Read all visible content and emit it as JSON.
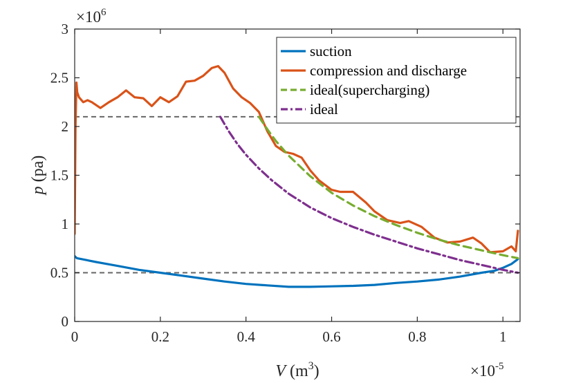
{
  "chart_data": {
    "type": "line",
    "xlabel": "V (m3)",
    "xlabel_main": "V",
    "xlabel_unit_open": " (m",
    "xlabel_unit_exp": "3",
    "xlabel_unit_close": ")",
    "ylabel": "p (pa)",
    "ylabel_main": "p",
    "ylabel_unit": " (pa)",
    "x_multiplier": "×10",
    "x_multiplier_exp": "-5",
    "y_multiplier": "×10",
    "y_multiplier_exp": "6",
    "xlim": [
      0,
      1.04
    ],
    "ylim": [
      0,
      3
    ],
    "x_ticks": [
      0,
      0.2,
      0.4,
      0.6,
      0.8,
      1
    ],
    "x_tick_labels": [
      "0",
      "0.2",
      "0.4",
      "0.6",
      "0.8",
      "1"
    ],
    "y_ticks": [
      0,
      0.5,
      1,
      1.5,
      2,
      2.5,
      3
    ],
    "y_tick_labels": [
      "0",
      "0.5",
      "1",
      "1.5",
      "2",
      "2.5",
      "3"
    ],
    "grid": false,
    "legend_position": "top-right",
    "reference_lines": [
      {
        "y": 2.1,
        "color": "#666666",
        "style": "dashed"
      },
      {
        "y": 0.5,
        "color": "#666666",
        "style": "dashed"
      }
    ],
    "series": [
      {
        "name": "suction",
        "color": "#0072BD",
        "style": "solid",
        "x": [
          0,
          0.005,
          0.05,
          0.1,
          0.15,
          0.2,
          0.25,
          0.3,
          0.35,
          0.4,
          0.45,
          0.5,
          0.55,
          0.6,
          0.65,
          0.7,
          0.75,
          0.8,
          0.85,
          0.9,
          0.95,
          0.98,
          1.0,
          1.02,
          1.035
        ],
        "y": [
          0.67,
          0.65,
          0.61,
          0.57,
          0.53,
          0.5,
          0.47,
          0.44,
          0.41,
          0.385,
          0.37,
          0.355,
          0.355,
          0.36,
          0.365,
          0.375,
          0.395,
          0.41,
          0.43,
          0.46,
          0.5,
          0.52,
          0.55,
          0.59,
          0.64
        ]
      },
      {
        "name": "compression and discharge",
        "color": "#D95319",
        "style": "solid",
        "x": [
          0,
          0.002,
          0.004,
          0.006,
          0.01,
          0.02,
          0.03,
          0.04,
          0.06,
          0.08,
          0.1,
          0.12,
          0.14,
          0.16,
          0.18,
          0.2,
          0.22,
          0.24,
          0.26,
          0.28,
          0.3,
          0.32,
          0.335,
          0.35,
          0.37,
          0.39,
          0.41,
          0.43,
          0.45,
          0.47,
          0.49,
          0.51,
          0.53,
          0.55,
          0.57,
          0.6,
          0.62,
          0.65,
          0.68,
          0.7,
          0.73,
          0.76,
          0.78,
          0.81,
          0.84,
          0.87,
          0.9,
          0.93,
          0.95,
          0.97,
          1.0,
          1.02,
          1.03,
          1.035
        ],
        "y": [
          0.9,
          2.0,
          2.45,
          2.35,
          2.3,
          2.25,
          2.27,
          2.25,
          2.19,
          2.25,
          2.3,
          2.37,
          2.3,
          2.29,
          2.21,
          2.3,
          2.25,
          2.31,
          2.46,
          2.47,
          2.52,
          2.6,
          2.62,
          2.55,
          2.39,
          2.3,
          2.24,
          2.15,
          1.95,
          1.8,
          1.74,
          1.72,
          1.68,
          1.55,
          1.45,
          1.35,
          1.33,
          1.33,
          1.22,
          1.13,
          1.04,
          1.01,
          1.03,
          0.97,
          0.86,
          0.81,
          0.82,
          0.86,
          0.8,
          0.71,
          0.72,
          0.77,
          0.72,
          0.93
        ]
      },
      {
        "name": "ideal(supercharging)",
        "color": "#77AC30",
        "style": "dashed",
        "x": [
          0.43,
          0.45,
          0.47,
          0.5,
          0.55,
          0.6,
          0.65,
          0.7,
          0.75,
          0.8,
          0.85,
          0.9,
          0.95,
          1.0,
          1.035
        ],
        "y": [
          2.1,
          1.97,
          1.85,
          1.7,
          1.49,
          1.32,
          1.19,
          1.08,
          0.99,
          0.91,
          0.84,
          0.78,
          0.73,
          0.68,
          0.65
        ]
      },
      {
        "name": "ideal",
        "color": "#7E2F8E",
        "style": "dashdot",
        "x": [
          0.34,
          0.36,
          0.38,
          0.4,
          0.43,
          0.46,
          0.5,
          0.55,
          0.6,
          0.65,
          0.7,
          0.75,
          0.8,
          0.85,
          0.9,
          0.95,
          1.0,
          1.035
        ],
        "y": [
          2.1,
          1.95,
          1.82,
          1.71,
          1.57,
          1.45,
          1.31,
          1.17,
          1.06,
          0.97,
          0.89,
          0.82,
          0.75,
          0.69,
          0.63,
          0.58,
          0.53,
          0.5
        ]
      }
    ]
  }
}
